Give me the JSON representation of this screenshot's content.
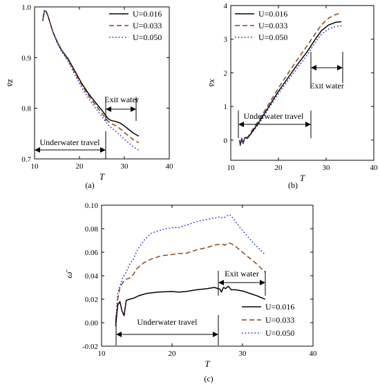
{
  "colors": {
    "s1": "#000000",
    "s2": "#8B4513",
    "s3": "#1f1fd6"
  },
  "chart_data": [
    {
      "type": "line",
      "panel_label": "(a)",
      "xlabel": "T",
      "ylabel": "v̄z",
      "xlim": [
        10,
        40
      ],
      "ylim": [
        0.7,
        1.0
      ],
      "xticks": [
        "10",
        "20",
        "30",
        "40"
      ],
      "yticks": [
        "0.7",
        "0.8",
        "0.9",
        "1.0"
      ],
      "legend": "top-right",
      "series": [
        {
          "name": "U=0.016",
          "style": "solid",
          "x": [
            11.8,
            12.2,
            12.6,
            13.0,
            14.0,
            15.0,
            16.0,
            17.5,
            19.0,
            20.5,
            22.0,
            23.5,
            25.0,
            26.3,
            27.0,
            28.0,
            29.0,
            30.0,
            31.0,
            32.0,
            33.2
          ],
          "y": [
            0.972,
            0.993,
            0.991,
            0.982,
            0.953,
            0.932,
            0.915,
            0.897,
            0.873,
            0.849,
            0.829,
            0.812,
            0.796,
            0.78,
            0.776,
            0.774,
            0.771,
            0.765,
            0.758,
            0.751,
            0.745
          ]
        },
        {
          "name": "U=0.033",
          "style": "dashed",
          "x": [
            11.8,
            12.2,
            12.6,
            13.0,
            14.0,
            15.0,
            16.0,
            17.5,
            19.0,
            20.5,
            22.0,
            23.5,
            25.0,
            26.3,
            27.0,
            28.0,
            29.0,
            30.0,
            31.0,
            32.0,
            33.2
          ],
          "y": [
            0.972,
            0.993,
            0.991,
            0.982,
            0.953,
            0.931,
            0.914,
            0.895,
            0.87,
            0.846,
            0.825,
            0.807,
            0.79,
            0.775,
            0.77,
            0.766,
            0.76,
            0.752,
            0.745,
            0.738,
            0.732
          ]
        },
        {
          "name": "U=0.050",
          "style": "dotted",
          "x": [
            11.8,
            12.2,
            12.6,
            13.0,
            14.0,
            15.0,
            16.0,
            17.5,
            19.0,
            20.5,
            22.0,
            23.5,
            25.0,
            26.3,
            27.0,
            28.0,
            29.0,
            30.0,
            31.0,
            32.0,
            33.2
          ],
          "y": [
            0.972,
            0.993,
            0.991,
            0.982,
            0.952,
            0.93,
            0.912,
            0.892,
            0.866,
            0.841,
            0.82,
            0.801,
            0.784,
            0.768,
            0.762,
            0.755,
            0.747,
            0.739,
            0.731,
            0.724,
            0.717
          ]
        }
      ],
      "annotations": {
        "left": "Underwater travel",
        "right": "Exit water"
      }
    },
    {
      "type": "line",
      "panel_label": "(b)",
      "xlabel": "T",
      "ylabel": "v̄x",
      "xlim": [
        10,
        40
      ],
      "ylim": [
        -0.6,
        4
      ],
      "xticks": [
        "10",
        "20",
        "30",
        "40"
      ],
      "yticks": [
        "0",
        "1",
        "2",
        "3",
        "4"
      ],
      "legend": "top-left",
      "series": [
        {
          "name": "U=0.016",
          "style": "solid",
          "x": [
            11.8,
            12.0,
            12.3,
            12.6,
            13.0,
            13.5,
            14.5,
            16.0,
            18.0,
            20.0,
            22.0,
            24.0,
            26.0,
            27.5,
            29.0,
            30.5,
            32.0,
            33.2
          ],
          "y": [
            0.0,
            -0.15,
            0.05,
            -0.1,
            0.08,
            0.05,
            0.25,
            0.55,
            1.0,
            1.45,
            1.85,
            2.25,
            2.62,
            2.95,
            3.25,
            3.42,
            3.5,
            3.52
          ]
        },
        {
          "name": "U=0.033",
          "style": "dashed",
          "x": [
            11.8,
            12.0,
            12.3,
            12.6,
            13.0,
            13.5,
            14.5,
            16.0,
            18.0,
            20.0,
            22.0,
            24.0,
            26.0,
            27.5,
            29.0,
            30.5,
            32.0,
            33.2
          ],
          "y": [
            0.0,
            -0.12,
            0.06,
            -0.08,
            0.1,
            0.08,
            0.3,
            0.62,
            1.08,
            1.55,
            1.98,
            2.4,
            2.8,
            3.12,
            3.42,
            3.62,
            3.73,
            3.78
          ]
        },
        {
          "name": "U=0.050",
          "style": "dotted",
          "x": [
            11.8,
            12.0,
            12.3,
            12.6,
            13.0,
            13.5,
            14.5,
            16.0,
            18.0,
            20.0,
            22.0,
            24.0,
            26.0,
            27.5,
            29.0,
            30.5,
            32.0,
            33.2
          ],
          "y": [
            0.0,
            -0.1,
            0.04,
            -0.06,
            0.08,
            0.06,
            0.22,
            0.5,
            0.95,
            1.38,
            1.77,
            2.15,
            2.52,
            2.86,
            3.15,
            3.3,
            3.38,
            3.4
          ]
        }
      ],
      "annotations": {
        "left": "Underwater travel",
        "right": "Exit water"
      }
    },
    {
      "type": "line",
      "panel_label": "(c)",
      "xlabel": "T",
      "ylabel": "ω̄",
      "xlim": [
        10,
        40
      ],
      "ylim": [
        -0.02,
        0.1
      ],
      "xticks": [
        "10",
        "20",
        "30",
        "40"
      ],
      "yticks": [
        "-0.02",
        "0.00",
        "0.02",
        "0.04",
        "0.06",
        "0.08",
        "0.10"
      ],
      "legend": "bottom-right",
      "series": [
        {
          "name": "U=0.016",
          "style": "solid",
          "x": [
            12.0,
            12.3,
            12.6,
            12.9,
            13.2,
            13.5,
            14.0,
            14.6,
            15.3,
            16.5,
            18.0,
            20.0,
            21.0,
            22.0,
            23.5,
            25.0,
            26.0,
            26.8,
            27.0,
            27.3,
            27.6,
            28.0,
            28.4,
            29.0,
            30.0,
            31.0,
            32.0,
            33.2
          ],
          "y": [
            -0.003,
            0.015,
            0.018,
            0.01,
            0.006,
            0.019,
            0.02,
            0.021,
            0.023,
            0.025,
            0.026,
            0.0265,
            0.026,
            0.0265,
            0.028,
            0.029,
            0.03,
            0.0285,
            0.026,
            0.03,
            0.029,
            0.031,
            0.028,
            0.028,
            0.027,
            0.025,
            0.023,
            0.02
          ]
        },
        {
          "name": "U=0.033",
          "style": "dashed",
          "x": [
            12.0,
            12.3,
            12.6,
            13.0,
            13.5,
            14.0,
            14.5,
            15.0,
            16.0,
            17.0,
            18.5,
            20.0,
            21.0,
            22.0,
            23.5,
            25.0,
            26.0,
            27.0,
            27.5,
            28.0,
            28.5,
            29.0,
            30.0,
            31.0,
            32.0,
            33.2
          ],
          "y": [
            0.0,
            0.02,
            0.03,
            0.034,
            0.037,
            0.038,
            0.041,
            0.046,
            0.051,
            0.054,
            0.057,
            0.058,
            0.059,
            0.059,
            0.062,
            0.064,
            0.066,
            0.067,
            0.066,
            0.068,
            0.067,
            0.065,
            0.06,
            0.055,
            0.05,
            0.043
          ]
        },
        {
          "name": "U=0.050",
          "style": "dotted",
          "x": [
            12.0,
            12.3,
            12.6,
            13.0,
            13.5,
            14.0,
            14.5,
            15.0,
            16.0,
            17.0,
            18.5,
            20.0,
            21.0,
            22.0,
            23.5,
            25.0,
            26.0,
            26.8,
            27.3,
            27.8,
            28.2,
            28.8,
            29.5,
            30.5,
            31.5,
            33.2
          ],
          "y": [
            0.0,
            0.025,
            0.031,
            0.038,
            0.043,
            0.05,
            0.054,
            0.061,
            0.07,
            0.076,
            0.079,
            0.081,
            0.081,
            0.083,
            0.086,
            0.088,
            0.089,
            0.09,
            0.089,
            0.091,
            0.092,
            0.088,
            0.082,
            0.075,
            0.068,
            0.058
          ]
        }
      ],
      "annotations": {
        "left": "Underwater travel",
        "right": "Exit water"
      }
    }
  ]
}
